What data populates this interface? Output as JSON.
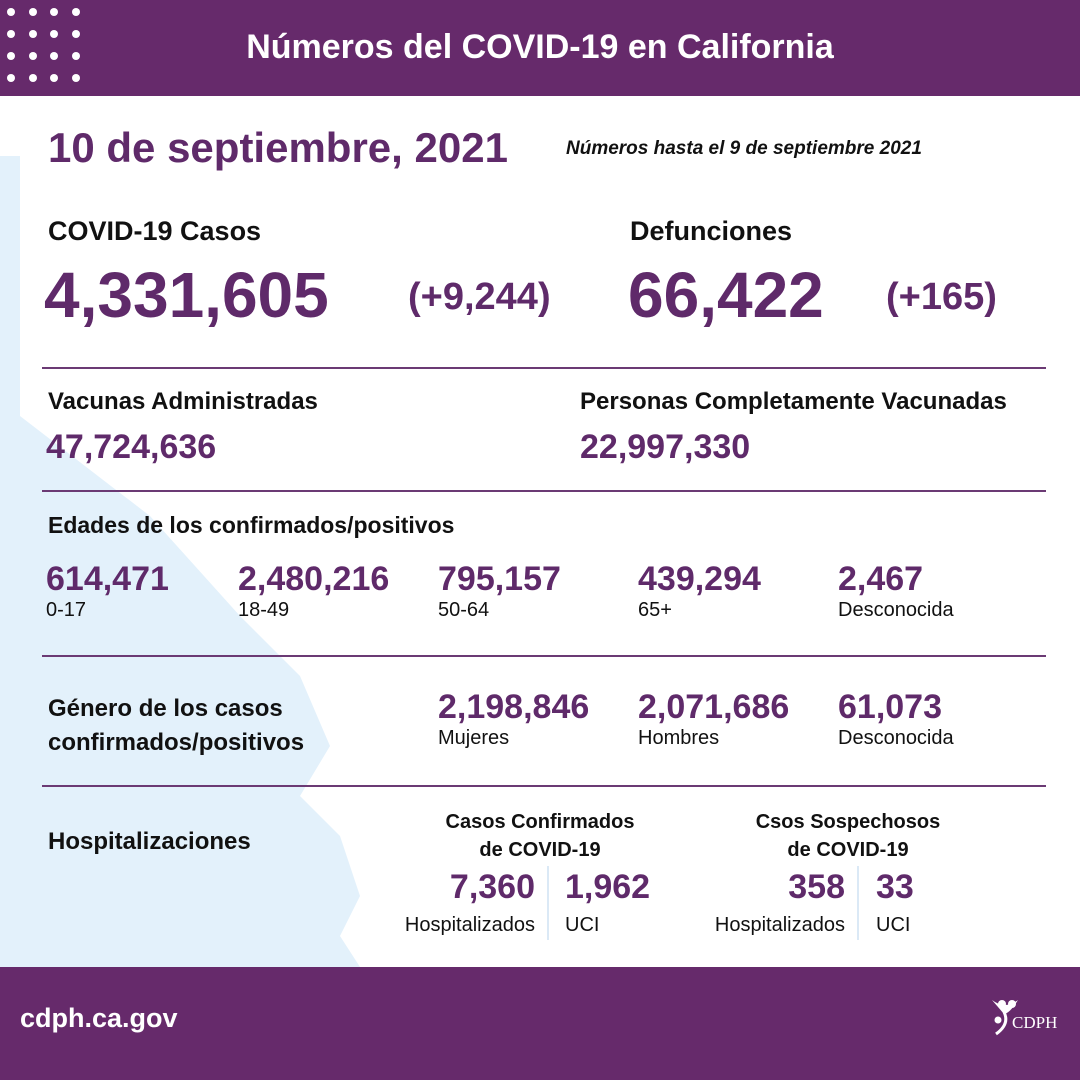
{
  "header": {
    "title": "Números del COVID-19 en California"
  },
  "date": "10 de septiembre, 2021",
  "as_of": "Números hasta el 9 de septiembre 2021",
  "cases": {
    "label": "COVID-19 Casos",
    "value": "4,331,605",
    "change": "(+9,244)"
  },
  "deaths": {
    "label": "Defunciones",
    "value": "66,422",
    "change": "(+165)"
  },
  "vaccines": {
    "label": "Vacunas Administradas",
    "value": "47,724,636"
  },
  "fully_vaccinated": {
    "label": "Personas Completamente Vacunadas",
    "value": "22,997,330"
  },
  "ages": {
    "title": "Edades de los confirmados/positivos",
    "items": [
      {
        "value": "614,471",
        "label": "0-17"
      },
      {
        "value": "2,480,216",
        "label": "18-49"
      },
      {
        "value": "795,157",
        "label": "50-64"
      },
      {
        "value": "439,294",
        "label": "65+"
      },
      {
        "value": "2,467",
        "label": "Desconocida"
      }
    ]
  },
  "gender": {
    "title_line1": "Género de los casos",
    "title_line2": "confirmados/positivos",
    "items": [
      {
        "value": "2,198,846",
        "label": "Mujeres"
      },
      {
        "value": "2,071,686",
        "label": "Hombres"
      },
      {
        "value": "61,073",
        "label": "Desconocida"
      }
    ]
  },
  "hosp": {
    "title": "Hospitalizaciones",
    "confirmed": {
      "line1": "Casos Confirmados",
      "line2": "de COVID-19",
      "hosp_value": "7,360",
      "hosp_label": "Hospitalizados",
      "icu_value": "1,962",
      "icu_label": "UCI"
    },
    "suspected": {
      "line1": "Csos Sospechosos",
      "line2": "de COVID-19",
      "hosp_value": "358",
      "hosp_label": "Hospitalizados",
      "icu_value": "33",
      "icu_label": "UCI"
    }
  },
  "footer": {
    "url": "cdph.ca.gov",
    "logo_text": "CDPH"
  },
  "colors": {
    "brand": "#662a6b",
    "text_purple": "#5f2a6a",
    "map": "#e3f1fb"
  }
}
